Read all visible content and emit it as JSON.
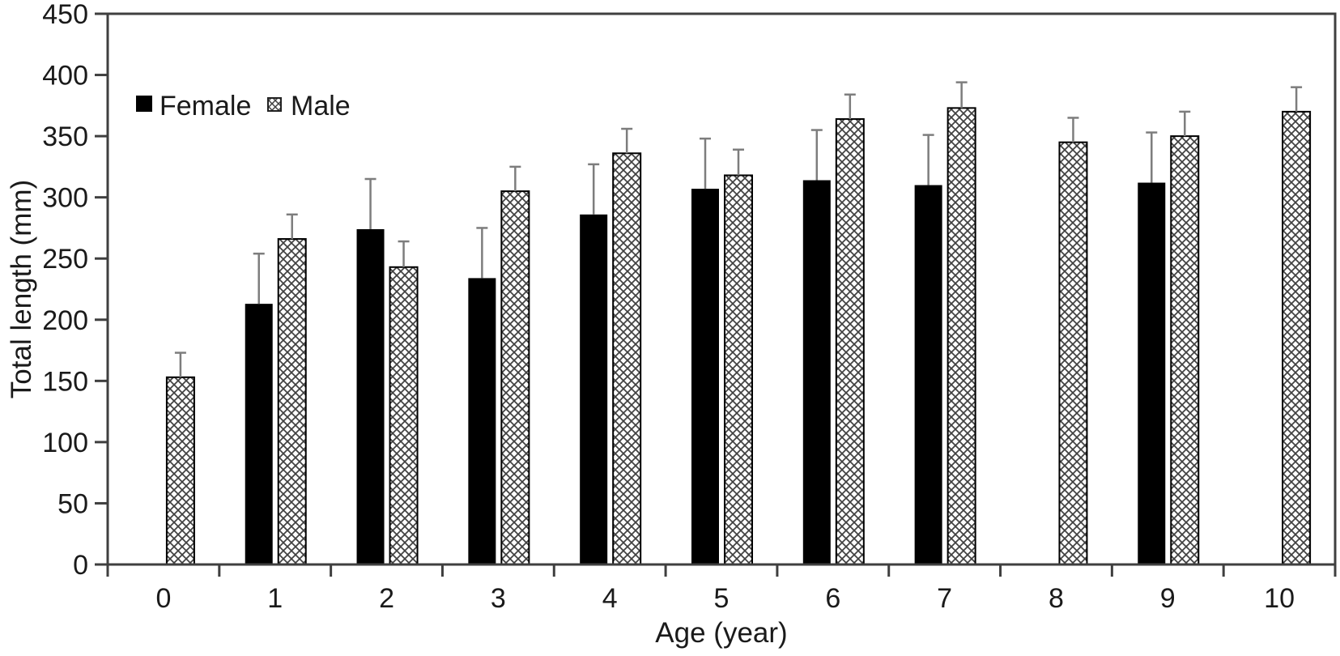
{
  "figure": {
    "background": "#ffffff",
    "frame_color": "#3f3f3f",
    "text_color": "#1a1a1a",
    "female_bar_color": "#000000",
    "hatch_line_color": "#404040",
    "error_bar_color": "#7d7d7d"
  },
  "chart_data": {
    "type": "bar",
    "title": "",
    "xlabel": "Age (year)",
    "ylabel": "Total length (mm)",
    "categories": [
      "0",
      "1",
      "2",
      "3",
      "4",
      "5",
      "6",
      "7",
      "8",
      "9",
      "10"
    ],
    "ylim": [
      0,
      450
    ],
    "yticks": [
      0,
      50,
      100,
      150,
      200,
      250,
      300,
      350,
      400,
      450
    ],
    "grid": false,
    "legend_position": "upper-left-inside",
    "error_bars": "upper whisker with cap",
    "legend": [
      {
        "label": "Female",
        "swatch": "solid-black-square"
      },
      {
        "label": "Male",
        "swatch": "crosshatch-square"
      }
    ],
    "series": [
      {
        "name": "Female",
        "style": "solid-black",
        "values": [
          null,
          213,
          274,
          234,
          286,
          307,
          314,
          310,
          null,
          312,
          null
        ],
        "errors": [
          null,
          41,
          41,
          41,
          41,
          41,
          41,
          41,
          null,
          41,
          null
        ]
      },
      {
        "name": "Male",
        "style": "crosshatch",
        "values": [
          153,
          266,
          243,
          305,
          336,
          318,
          364,
          373,
          345,
          350,
          370
        ],
        "errors": [
          20,
          20,
          21,
          20,
          20,
          21,
          20,
          21,
          20,
          20,
          20
        ]
      }
    ]
  }
}
